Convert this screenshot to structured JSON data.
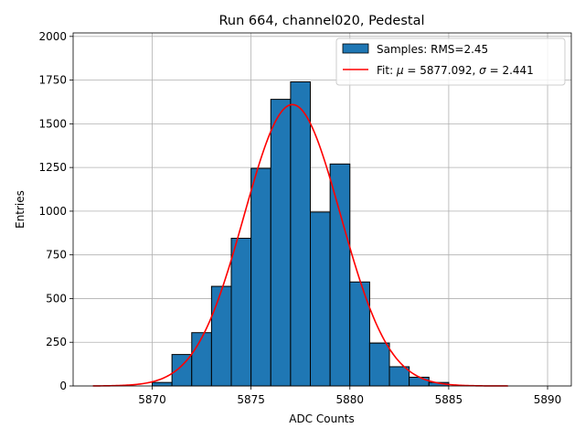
{
  "chart_data": {
    "type": "bar",
    "title": "Run 664, channel020, Pedestal",
    "xlabel": "ADC Counts",
    "ylabel": "Entries",
    "xlim": [
      5866,
      5891.2
    ],
    "ylim": [
      0,
      2020
    ],
    "x_ticks": [
      5870,
      5875,
      5880,
      5885,
      5890
    ],
    "x_tick_labels": [
      "5870",
      "5875",
      "5880",
      "5885",
      "5890"
    ],
    "y_ticks": [
      0,
      250,
      500,
      750,
      1000,
      1250,
      1500,
      1750,
      2000
    ],
    "y_tick_labels": [
      "0",
      "250",
      "500",
      "750",
      "1000",
      "1250",
      "1500",
      "1750",
      "2000"
    ],
    "grid": true,
    "legend_position": "top-right",
    "histogram": {
      "name": "Samples: RMS=2.45",
      "color": "#1f77b4",
      "edge_color": "#000000",
      "bins": [
        {
          "x0": 5870,
          "x1": 5871,
          "count": 20
        },
        {
          "x0": 5871,
          "x1": 5872,
          "count": 180
        },
        {
          "x0": 5872,
          "x1": 5873,
          "count": 305
        },
        {
          "x0": 5873,
          "x1": 5874,
          "count": 570
        },
        {
          "x0": 5874,
          "x1": 5875,
          "count": 845
        },
        {
          "x0": 5875,
          "x1": 5876,
          "count": 1245
        },
        {
          "x0": 5876,
          "x1": 5877,
          "count": 1640
        },
        {
          "x0": 5877,
          "x1": 5878,
          "count": 1740
        },
        {
          "x0": 5878,
          "x1": 5879,
          "count": 995
        },
        {
          "x0": 5879,
          "x1": 5880,
          "count": 1270
        },
        {
          "x0": 5880,
          "x1": 5881,
          "count": 595
        },
        {
          "x0": 5881,
          "x1": 5882,
          "count": 245
        },
        {
          "x0": 5882,
          "x1": 5883,
          "count": 110
        },
        {
          "x0": 5883,
          "x1": 5884,
          "count": 50
        },
        {
          "x0": 5884,
          "x1": 5885,
          "count": 20
        }
      ]
    },
    "fit": {
      "name_prefix": "Fit: ",
      "name_mu": "μ",
      "name_mid": " = 5877.092, ",
      "name_sigma": "σ",
      "name_suffix": " = 2.441",
      "color": "#ff0000",
      "mu": 5877.092,
      "sigma": 2.441,
      "amplitude": 1610,
      "x_range": [
        5867,
        5888
      ]
    }
  }
}
